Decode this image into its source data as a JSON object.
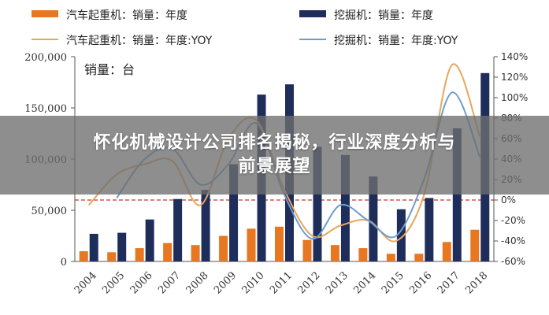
{
  "overlay": {
    "line1": "怀化机械设计公司排名揭秘，行业深度分析与",
    "line2": "前景展望"
  },
  "chart_data": {
    "type": "bar",
    "unit_label": "销量：台",
    "categories": [
      "2004",
      "2005",
      "2006",
      "2007",
      "2008",
      "2009",
      "2010",
      "2011",
      "2012",
      "2013",
      "2014",
      "2015",
      "2016",
      "2017",
      "2018"
    ],
    "series": [
      {
        "name": "汽车起重机：销量：年度",
        "kind": "bar",
        "axis": "left",
        "color": "#e87722",
        "values": [
          10000,
          9000,
          13000,
          18000,
          16000,
          25000,
          32000,
          34000,
          21000,
          16000,
          13000,
          7500,
          7500,
          19000,
          31000
        ]
      },
      {
        "name": "挖掘机：销量：年度",
        "kind": "bar",
        "axis": "left",
        "color": "#1f2d5a",
        "values": [
          27000,
          28000,
          41000,
          61000,
          70000,
          95000,
          163000,
          173000,
          112000,
          104000,
          83000,
          51000,
          62000,
          130000,
          184000
        ]
      },
      {
        "name": "汽车起重机：销量：年度:YOY",
        "kind": "line",
        "axis": "right",
        "color": "#e8a65b",
        "values": [
          -5,
          25,
          35,
          38,
          -5,
          60,
          78,
          10,
          -35,
          -25,
          -20,
          -40,
          5,
          132,
          62
        ]
      },
      {
        "name": "挖掘机：销量：年度:YOY",
        "kind": "line",
        "axis": "right",
        "color": "#6e9dcb",
        "values": [
          null,
          2,
          40,
          50,
          15,
          35,
          75,
          5,
          -38,
          -5,
          -20,
          -35,
          20,
          105,
          42
        ]
      }
    ],
    "y_left": {
      "min": 0,
      "max": 200000,
      "ticks": [
        "0",
        "50,000",
        "100,000",
        "150,000",
        "200,000"
      ]
    },
    "y_right": {
      "min": -60,
      "max": 140,
      "ticks": [
        "-60%",
        "-40%",
        "-20%",
        "0%",
        "20%",
        "40%",
        "60%",
        "80%",
        "100%",
        "120%",
        "140%"
      ]
    },
    "reference_line": {
      "axis": "right",
      "value": 0,
      "color": "#c0392b",
      "style": "dashed"
    },
    "grid": false,
    "legend_placement": "top"
  }
}
